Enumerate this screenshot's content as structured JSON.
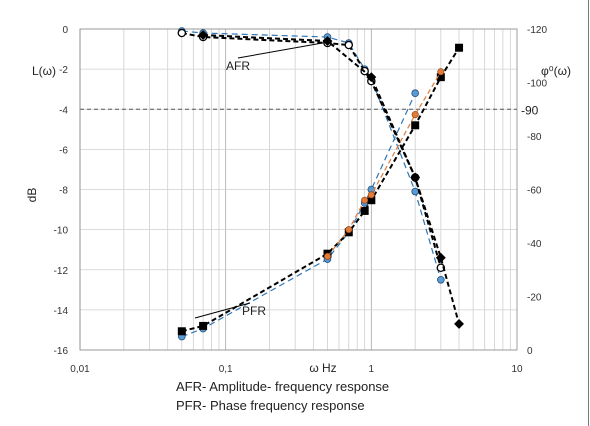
{
  "chart_data": {
    "type": "line",
    "xscale": "log",
    "xlim": [
      0.01,
      10
    ],
    "x_ticks": [
      0.01,
      0.1,
      1,
      10
    ],
    "x_tick_labels": [
      "0,01",
      "0,1",
      "1",
      "10"
    ],
    "xlabel": "ω Hz",
    "ylabel_left": "dB",
    "ylabel_left_top": "L(ω)",
    "ylim_left": [
      -16,
      0
    ],
    "left_ticks": [
      0,
      -2,
      -4,
      -6,
      -8,
      -10,
      -12,
      -14,
      -16
    ],
    "ylabel_right": "φ⁰(ω)",
    "ylim_right": [
      0,
      -120
    ],
    "right_ticks": [
      -120,
      -100,
      -80,
      -60,
      -40,
      -20,
      0
    ],
    "right_extra_tick": "-90",
    "reference_line_left_value": -4,
    "grid": true,
    "annotations": [
      "AFR",
      "PFR"
    ],
    "series": [
      {
        "axis": "left",
        "style": "dashed-blue",
        "x": [
          0.05,
          0.07,
          0.5,
          0.7,
          0.9,
          1.0,
          2.0,
          3.0
        ],
        "y": [
          -0.1,
          -0.2,
          -0.4,
          -0.7,
          -2.0,
          -2.5,
          -8.1,
          -12.5
        ]
      },
      {
        "axis": "left",
        "style": "dashed-black-circle",
        "x": [
          0.05,
          0.07,
          0.5,
          0.7,
          0.9,
          1.0,
          2.0,
          3.0
        ],
        "y": [
          -0.2,
          -0.4,
          -0.7,
          -0.8,
          -2.1,
          -2.6,
          -7.4,
          -11.9
        ]
      },
      {
        "axis": "left",
        "style": "dashed-black-diamond",
        "x": [
          0.07,
          0.5,
          1.0,
          2.0,
          3.0,
          4.0
        ],
        "y": [
          -0.3,
          -0.6,
          -2.4,
          -7.4,
          -11.4,
          -14.7
        ]
      },
      {
        "axis": "right",
        "style": "dashed-blue",
        "x": [
          0.05,
          0.07,
          0.5,
          0.7,
          0.9,
          1.0,
          2.0
        ],
        "y": [
          -5,
          -8,
          -34,
          -44,
          -55,
          -60,
          -96
        ]
      },
      {
        "axis": "right",
        "style": "dashed-black-square",
        "x": [
          0.05,
          0.07,
          0.5,
          0.7,
          0.9,
          1.0,
          2.0,
          3.0,
          4.0
        ],
        "y": [
          -7,
          -9,
          -36,
          -44,
          -52,
          -56,
          -84,
          -102,
          -113
        ]
      },
      {
        "axis": "right",
        "style": "dashed-orange",
        "x": [
          0.5,
          0.7,
          0.9,
          1.0,
          2.0,
          3.0
        ],
        "y": [
          -35,
          -45,
          -56,
          -58,
          -88,
          -104
        ]
      }
    ]
  },
  "caption_lines": [
    "AFR- Amplitude- frequency response",
    "PFR- Phase frequency response"
  ],
  "colors": {
    "blue": "#2e75b6",
    "black": "#000000",
    "orange": "#e07b39",
    "blue_marker": "#5b9bd5",
    "grid": "#cfcfcf"
  }
}
